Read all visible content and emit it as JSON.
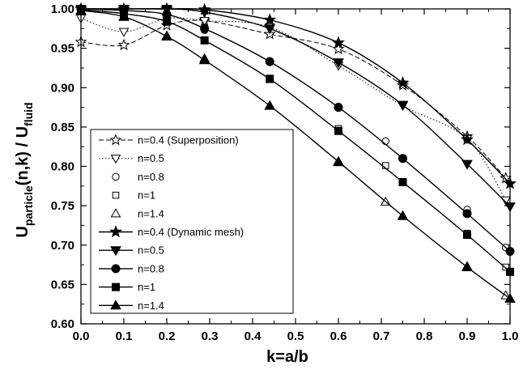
{
  "chart_data": {
    "type": "line",
    "xlabel": "k=a/b",
    "ylabel": {
      "main": "U",
      "sub1": "particle",
      "middle": "(n,k) / U",
      "sub2": "fluid"
    },
    "xlim": [
      0.0,
      1.0
    ],
    "ylim": [
      0.6,
      1.0
    ],
    "xticks": [
      "0.0",
      "0.1",
      "0.2",
      "0.3",
      "0.4",
      "0.5",
      "0.6",
      "0.7",
      "0.8",
      "0.9",
      "1.0"
    ],
    "yticks": [
      "0.60",
      "0.65",
      "0.70",
      "0.75",
      "0.80",
      "0.85",
      "0.90",
      "0.95",
      "1.00"
    ],
    "grid": false,
    "legend_position": "bottom-left",
    "series": [
      {
        "name": "n=0.4 (Superposition)",
        "marker": "star",
        "filled": false,
        "line": "dashed",
        "x": [
          0.0,
          0.1,
          0.2,
          0.288,
          0.44,
          0.6,
          0.75,
          0.9,
          0.99
        ],
        "y": [
          0.958,
          0.954,
          0.979,
          0.985,
          0.968,
          0.949,
          0.903,
          0.838,
          0.785
        ]
      },
      {
        "name": "n=0.5",
        "marker": "triangle-down",
        "filled": false,
        "line": "dotted",
        "x": [
          0.0,
          0.1,
          0.2,
          0.288,
          0.44,
          0.6,
          0.75,
          0.9,
          0.99
        ],
        "y": [
          0.988,
          0.971,
          0.988,
          0.985,
          0.977,
          0.928,
          0.877,
          0.835,
          0.757
        ]
      },
      {
        "name": "n=0.8",
        "marker": "circle",
        "filled": false,
        "line": "none",
        "x": [
          0.0,
          0.1,
          0.2,
          0.288,
          0.44,
          0.6,
          0.71,
          0.9,
          0.99
        ],
        "y": [
          0.999,
          0.997,
          0.991,
          0.973,
          0.934,
          0.876,
          0.832,
          0.745,
          0.697
        ]
      },
      {
        "name": "n=1",
        "marker": "square",
        "filled": false,
        "line": "none",
        "x": [
          0.0,
          0.1,
          0.2,
          0.288,
          0.44,
          0.6,
          0.71,
          0.9,
          0.99
        ],
        "y": [
          0.998,
          0.993,
          0.983,
          0.96,
          0.912,
          0.848,
          0.801,
          0.715,
          0.672
        ]
      },
      {
        "name": "n=1.4",
        "marker": "triangle-up",
        "filled": false,
        "line": "none",
        "x": [
          0.0,
          0.1,
          0.2,
          0.288,
          0.44,
          0.6,
          0.71,
          0.9,
          0.99
        ],
        "y": [
          0.997,
          0.99,
          0.966,
          0.937,
          0.877,
          0.805,
          0.755,
          0.673,
          0.636
        ]
      },
      {
        "name": "n=0.4 (Dynamic mesh)",
        "marker": "star",
        "filled": true,
        "line": "solid",
        "x": [
          0.0,
          0.1,
          0.2,
          0.288,
          0.44,
          0.6,
          0.75,
          0.9,
          1.0
        ],
        "y": [
          1.0,
          1.0,
          1.0,
          0.999,
          0.986,
          0.957,
          0.906,
          0.834,
          0.778
        ]
      },
      {
        "name": "n=0.5",
        "marker": "triangle-down",
        "filled": true,
        "line": "solid",
        "x": [
          0.0,
          0.1,
          0.2,
          0.288,
          0.44,
          0.6,
          0.75,
          0.9,
          1.0
        ],
        "y": [
          1.0,
          1.0,
          1.0,
          0.996,
          0.975,
          0.932,
          0.878,
          0.803,
          0.749
        ]
      },
      {
        "name": "n=0.8",
        "marker": "circle",
        "filled": true,
        "line": "solid",
        "x": [
          0.0,
          0.1,
          0.2,
          0.288,
          0.44,
          0.6,
          0.75,
          0.9,
          1.0
        ],
        "y": [
          1.0,
          0.998,
          0.993,
          0.975,
          0.933,
          0.875,
          0.81,
          0.74,
          0.692
        ]
      },
      {
        "name": "n=1",
        "marker": "square",
        "filled": true,
        "line": "solid",
        "x": [
          0.0,
          0.1,
          0.2,
          0.288,
          0.44,
          0.6,
          0.75,
          0.9,
          1.0
        ],
        "y": [
          0.999,
          0.994,
          0.984,
          0.96,
          0.911,
          0.845,
          0.78,
          0.713,
          0.666
        ]
      },
      {
        "name": "n=1.4",
        "marker": "triangle-up",
        "filled": true,
        "line": "solid",
        "x": [
          0.0,
          0.1,
          0.2,
          0.288,
          0.44,
          0.6,
          0.75,
          0.9,
          1.0
        ],
        "y": [
          0.998,
          0.99,
          0.965,
          0.935,
          0.877,
          0.806,
          0.737,
          0.672,
          0.632
        ]
      }
    ]
  }
}
